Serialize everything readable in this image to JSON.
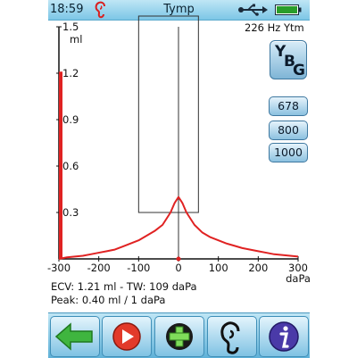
{
  "status_bar": {
    "time": "18:59",
    "title": "Tymp",
    "icons": [
      "ear-icon",
      "usb-icon",
      "battery-icon"
    ],
    "battery_color": "#2a9d2a"
  },
  "chart_data": {
    "type": "line",
    "xlabel": "daPa",
    "ylabel": "ml",
    "x_ticks": [
      "-300",
      "-200",
      "-100",
      "0",
      "100",
      "200",
      "300"
    ],
    "y_ticks": [
      "1.5",
      "1.2",
      "0.9",
      "0.6",
      "0.3"
    ],
    "xlim": [
      -300,
      300
    ],
    "ylim": [
      0,
      1.5
    ],
    "series": [
      {
        "color": "#e02222",
        "x": [
          -300,
          -280,
          -260,
          -240,
          -220,
          -200,
          -180,
          -160,
          -140,
          -120,
          -100,
          -80,
          -60,
          -40,
          -20,
          -10,
          0,
          10,
          20,
          40,
          60,
          80,
          100,
          120,
          140,
          160,
          180,
          200,
          220,
          240,
          260,
          280,
          300
        ],
        "y": [
          0.0,
          0.01,
          0.015,
          0.02,
          0.03,
          0.04,
          0.05,
          0.06,
          0.08,
          0.1,
          0.12,
          0.15,
          0.18,
          0.22,
          0.3,
          0.36,
          0.4,
          0.36,
          0.3,
          0.22,
          0.17,
          0.14,
          0.12,
          0.1,
          0.085,
          0.07,
          0.06,
          0.05,
          0.04,
          0.03,
          0.025,
          0.02,
          0.015
        ]
      }
    ],
    "ecv_bar": {
      "x": -300,
      "value": 1.21,
      "color": "#e02222"
    },
    "peak_marker": {
      "x": 0,
      "y": 0
    },
    "target_box": {
      "x_range": [
        -100,
        50
      ],
      "y_range": [
        0.3,
        1.5
      ]
    },
    "center_line_x": 0
  },
  "readout": {
    "line1": "ECV: 1.21 ml - TW: 109 daPa",
    "line2": "Peak: 0.40 ml / 1 daPa"
  },
  "panel": {
    "probe_frequency": "226 Hz Ytm",
    "ybg_button": {
      "y": "Y",
      "b": "B",
      "g": "G"
    },
    "freq_buttons": [
      "678",
      "800",
      "1000"
    ]
  },
  "toolbar": {
    "buttons": [
      {
        "name": "back-button",
        "icon": "green-left-arrow-icon"
      },
      {
        "name": "play-button",
        "icon": "red-play-icon"
      },
      {
        "name": "add-button",
        "icon": "green-plus-icon"
      },
      {
        "name": "ear-button",
        "icon": "ear-icon"
      },
      {
        "name": "info-button",
        "icon": "info-icon"
      }
    ]
  }
}
